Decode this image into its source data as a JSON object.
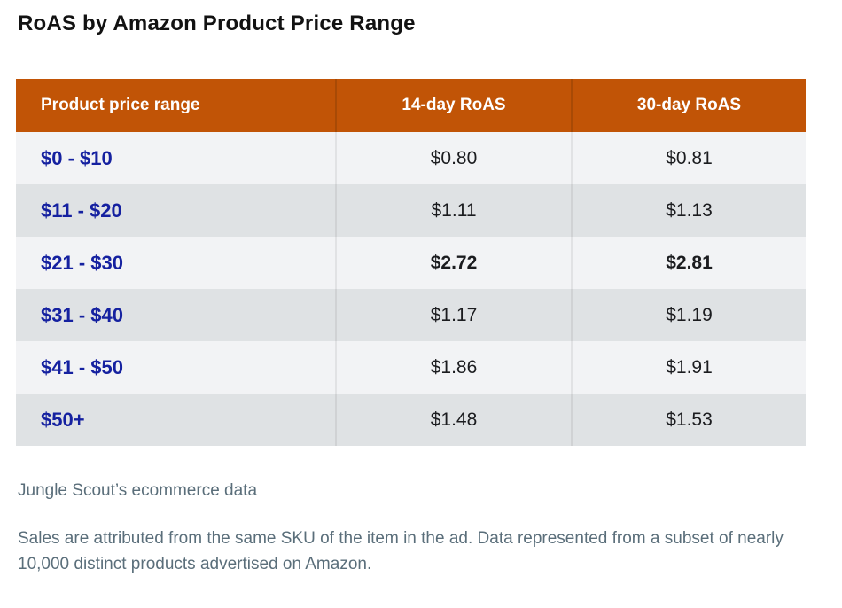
{
  "page": {
    "title": "RoAS by Amazon Product Price Range"
  },
  "table": {
    "columns": [
      "Product price range",
      "14-day RoAS",
      "30-day RoAS"
    ],
    "rows": [
      {
        "range": "$0 - $10",
        "roas14": "$0.80",
        "roas30": "$0.81",
        "emphasis": false
      },
      {
        "range": "$11 - $20",
        "roas14": "$1.11",
        "roas30": "$1.13",
        "emphasis": false
      },
      {
        "range": "$21 - $30",
        "roas14": "$2.72",
        "roas30": "$2.81",
        "emphasis": true
      },
      {
        "range": "$31 - $40",
        "roas14": "$1.17",
        "roas30": "$1.19",
        "emphasis": false
      },
      {
        "range": "$41 - $50",
        "roas14": "$1.86",
        "roas30": "$1.91",
        "emphasis": false
      },
      {
        "range": "$50+",
        "roas14": "$1.48",
        "roas30": "$1.53",
        "emphasis": false
      }
    ]
  },
  "footer": {
    "source": "Jungle Scout’s ecommerce data",
    "note": "Sales are attributed from the same SKU of the item in the ad. Data represented from a subset of nearly 10,000 distinct products advertised on Amazon."
  },
  "colors": {
    "header_bg": "#C15406",
    "header_divider": "#A84A05",
    "row_light": "#F2F3F5",
    "row_dark": "#DFE2E4",
    "range_blue": "#1521A0",
    "value_text": "#1b1c1f",
    "note_gray": "#5A6E7A"
  },
  "chart_data": {
    "type": "table",
    "title": "RoAS by Amazon Product Price Range",
    "columns": [
      "Product price range",
      "14-day RoAS",
      "30-day RoAS"
    ],
    "rows": [
      [
        "$0 - $10",
        0.8,
        0.81
      ],
      [
        "$11 - $20",
        1.11,
        1.13
      ],
      [
        "$21 - $30",
        2.72,
        2.81
      ],
      [
        "$31 - $40",
        1.17,
        1.19
      ],
      [
        "$41 - $50",
        1.86,
        1.91
      ],
      [
        "$50+",
        1.48,
        1.53
      ]
    ],
    "emphasized_row": "$21 - $30",
    "source": "Jungle Scout’s ecommerce data",
    "note": "Sales are attributed from the same SKU of the item in the ad. Data represented from a subset of nearly 10,000 distinct products advertised on Amazon."
  }
}
